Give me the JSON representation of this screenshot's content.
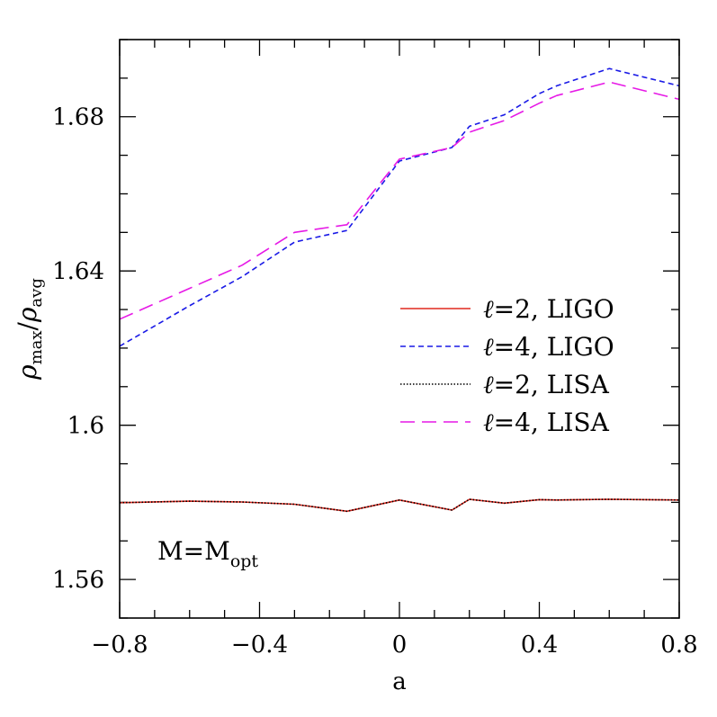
{
  "chart_data": {
    "type": "line",
    "xlabel": "a",
    "ylabel": {
      "base": "ρ",
      "sub1": "max",
      "sep": "/",
      "base2": "ρ",
      "sub2": "avg"
    },
    "xlim": [
      -0.8,
      0.8
    ],
    "ylim": [
      1.55,
      1.7
    ],
    "xticks": [
      {
        "v": -0.8,
        "label": "−0.8"
      },
      {
        "v": -0.4,
        "label": "−0.4"
      },
      {
        "v": 0,
        "label": "0"
      },
      {
        "v": 0.4,
        "label": "0.4"
      },
      {
        "v": 0.8,
        "label": "0.8"
      }
    ],
    "yticks": [
      {
        "v": 1.56,
        "label": "1.56"
      },
      {
        "v": 1.6,
        "label": "1.6"
      },
      {
        "v": 1.64,
        "label": "1.64"
      },
      {
        "v": 1.68,
        "label": "1.68"
      }
    ],
    "grid": false,
    "legend_placement": "right-middle",
    "annotation": {
      "base": "M=M",
      "sub": "opt"
    },
    "series": [
      {
        "name": "ℓ=2, LIGO",
        "legend_l": "ℓ",
        "legend_rest": "=2,  LIGO",
        "color": "#e0291f",
        "dash": "",
        "x": [
          -0.8,
          -0.6,
          -0.45,
          -0.3,
          -0.15,
          0.0,
          0.15,
          0.2,
          0.3,
          0.4,
          0.45,
          0.6,
          0.8
        ],
        "y": [
          1.5799,
          1.5803,
          1.5801,
          1.5795,
          1.5777,
          1.5806,
          1.578,
          1.5808,
          1.5798,
          1.5807,
          1.5806,
          1.5808,
          1.5806
        ]
      },
      {
        "name": "ℓ=4, LIGO",
        "legend_l": "ℓ",
        "legend_rest": "=4,  LIGO",
        "color": "#1a1ae6",
        "dash": "6,4",
        "x": [
          -0.8,
          -0.6,
          -0.45,
          -0.3,
          -0.15,
          0.0,
          0.15,
          0.2,
          0.3,
          0.4,
          0.45,
          0.6,
          0.8
        ],
        "y": [
          1.6205,
          1.631,
          1.6385,
          1.6475,
          1.6505,
          1.6685,
          1.672,
          1.6775,
          1.6805,
          1.686,
          1.688,
          1.6925,
          1.688
        ]
      },
      {
        "name": "ℓ=2, LISA",
        "legend_l": "ℓ",
        "legend_rest": "=2,  LISA",
        "color": "#000000",
        "dash": "1.5,2",
        "x": [
          -0.8,
          -0.6,
          -0.45,
          -0.3,
          -0.15,
          0.0,
          0.15,
          0.2,
          0.3,
          0.4,
          0.45,
          0.6,
          0.8
        ],
        "y": [
          1.5799,
          1.5803,
          1.5801,
          1.5795,
          1.5777,
          1.5806,
          1.578,
          1.5808,
          1.5798,
          1.5807,
          1.5806,
          1.5808,
          1.5806
        ]
      },
      {
        "name": "ℓ=4, LISA",
        "legend_l": "ℓ",
        "legend_rest": "=4,  LISA",
        "color": "#e619e6",
        "dash": "16,8",
        "x": [
          -0.8,
          -0.6,
          -0.45,
          -0.3,
          -0.15,
          0.0,
          0.15,
          0.2,
          0.3,
          0.4,
          0.45,
          0.6,
          0.8
        ],
        "y": [
          1.6275,
          1.6355,
          1.6415,
          1.65,
          1.652,
          1.669,
          1.672,
          1.676,
          1.679,
          1.6835,
          1.6855,
          1.689,
          1.6845
        ]
      }
    ]
  }
}
